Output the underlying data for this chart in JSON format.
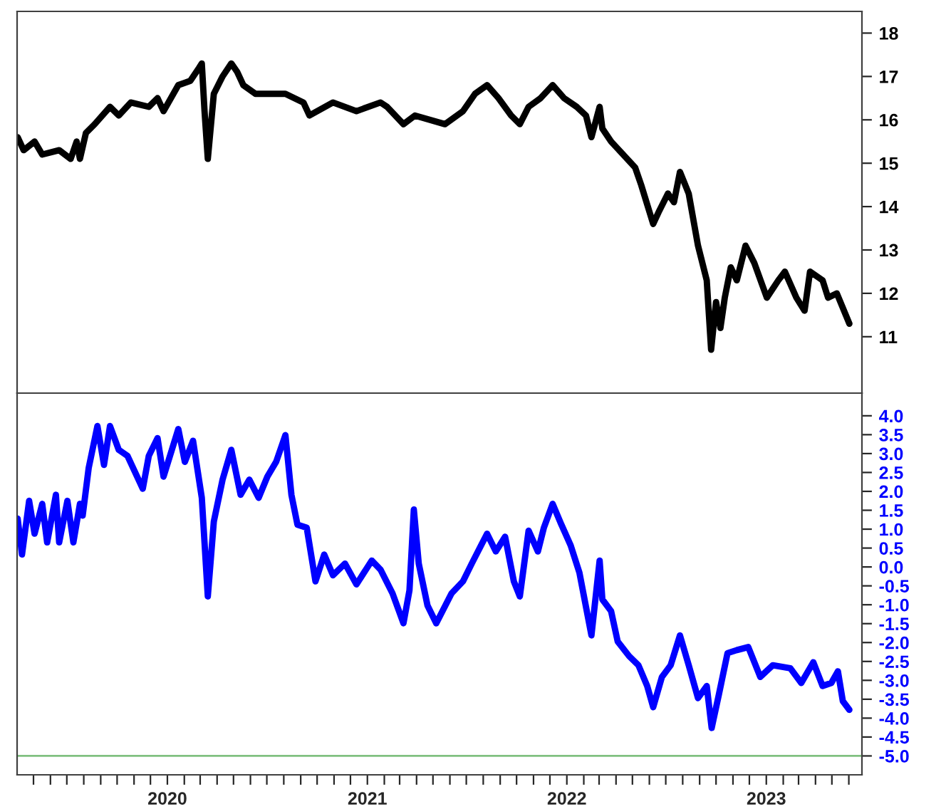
{
  "chart_data": [
    {
      "type": "line",
      "tick_labels": "y",
      "grid": false,
      "line_style": "solid",
      "marker": "none",
      "xlim": [
        "2019-04-01",
        "2023-06-25"
      ],
      "ylim": [
        9.7,
        18.5
      ],
      "yticks": [
        11,
        12,
        13,
        14,
        15,
        16,
        17,
        18
      ],
      "series": [
        {
          "color": "#000000",
          "x": [
            "2019-04-02",
            "2019-04-13",
            "2019-05-03",
            "2019-05-17",
            "2019-06-17",
            "2019-07-08",
            "2019-07-19",
            "2019-07-25",
            "2019-08-05",
            "2019-08-21",
            "2019-09-18",
            "2019-10-04",
            "2019-10-26",
            "2019-11-28",
            "2019-12-14",
            "2019-12-25",
            "2020-01-21",
            "2020-02-12",
            "2020-02-28",
            "2020-03-04",
            "2020-03-09",
            "2020-03-15",
            "2020-03-26",
            "2020-04-11",
            "2020-04-27",
            "2020-05-08",
            "2020-05-19",
            "2020-06-10",
            "2020-07-12",
            "2020-08-04",
            "2020-09-06",
            "2020-09-17",
            "2020-10-30",
            "2020-12-12",
            "2021-01-25",
            "2021-02-06",
            "2021-03-08",
            "2021-03-29",
            "2021-05-23",
            "2021-06-25",
            "2021-07-17",
            "2021-08-08",
            "2021-08-29",
            "2021-09-21",
            "2021-10-07",
            "2021-10-23",
            "2021-11-14",
            "2021-12-06",
            "2021-12-27",
            "2022-01-19",
            "2022-02-05",
            "2022-02-15",
            "2022-03-02",
            "2022-03-07",
            "2022-03-23",
            "2022-04-14",
            "2022-05-06",
            "2022-05-17",
            "2022-06-08",
            "2022-06-19",
            "2022-07-05",
            "2022-07-16",
            "2022-07-27",
            "2022-08-12",
            "2022-08-29",
            "2022-09-14",
            "2022-09-22",
            "2022-10-01",
            "2022-10-09",
            "2022-10-17",
            "2022-10-28",
            "2022-11-08",
            "2022-11-24",
            "2022-12-10",
            "2023-01-02",
            "2023-01-23",
            "2023-02-04",
            "2023-02-25",
            "2023-03-12",
            "2023-03-22",
            "2023-04-14",
            "2023-04-24",
            "2023-05-10",
            "2023-06-02"
          ],
          "values": [
            15.6,
            15.3,
            15.5,
            15.2,
            15.3,
            15.1,
            15.5,
            15.1,
            15.7,
            15.9,
            16.3,
            16.1,
            16.4,
            16.3,
            16.5,
            16.2,
            16.8,
            16.9,
            17.2,
            17.3,
            16.2,
            15.1,
            16.6,
            17.0,
            17.3,
            17.1,
            16.8,
            16.6,
            16.6,
            16.6,
            16.4,
            16.1,
            16.4,
            16.2,
            16.4,
            16.3,
            15.9,
            16.1,
            15.9,
            16.2,
            16.6,
            16.8,
            16.5,
            16.1,
            15.9,
            16.3,
            16.5,
            16.8,
            16.5,
            16.3,
            16.1,
            15.6,
            16.3,
            15.8,
            15.5,
            15.2,
            14.9,
            14.5,
            13.6,
            13.9,
            14.3,
            14.1,
            14.8,
            14.3,
            13.1,
            12.3,
            10.7,
            11.8,
            11.2,
            11.9,
            12.6,
            12.3,
            13.1,
            12.7,
            11.9,
            12.3,
            12.5,
            11.9,
            11.6,
            12.5,
            12.3,
            11.9,
            12.0,
            11.3
          ]
        }
      ]
    },
    {
      "type": "line",
      "grid": false,
      "line_style": "solid",
      "marker": "none",
      "xlim": [
        "2019-04-01",
        "2023-06-25"
      ],
      "xticks": [
        {
          "value": "2019-05-01",
          "label": null
        },
        {
          "value": "2019-06-01",
          "label": null
        },
        {
          "value": "2019-07-01",
          "label": null
        },
        {
          "value": "2019-08-01",
          "label": null
        },
        {
          "value": "2019-09-01",
          "label": null
        },
        {
          "value": "2019-10-01",
          "label": null
        },
        {
          "value": "2019-11-01",
          "label": null
        },
        {
          "value": "2019-12-01",
          "label": null
        },
        {
          "value": "2020-01-01",
          "label": "2020"
        },
        {
          "value": "2020-02-01",
          "label": null
        },
        {
          "value": "2020-03-01",
          "label": null
        },
        {
          "value": "2020-04-01",
          "label": null
        },
        {
          "value": "2020-05-01",
          "label": null
        },
        {
          "value": "2020-06-01",
          "label": null
        },
        {
          "value": "2020-07-01",
          "label": null
        },
        {
          "value": "2020-08-01",
          "label": null
        },
        {
          "value": "2020-09-01",
          "label": null
        },
        {
          "value": "2020-10-01",
          "label": null
        },
        {
          "value": "2020-11-01",
          "label": null
        },
        {
          "value": "2020-12-01",
          "label": null
        },
        {
          "value": "2021-01-01",
          "label": "2021"
        },
        {
          "value": "2021-02-01",
          "label": null
        },
        {
          "value": "2021-03-01",
          "label": null
        },
        {
          "value": "2021-04-01",
          "label": null
        },
        {
          "value": "2021-05-01",
          "label": null
        },
        {
          "value": "2021-06-01",
          "label": null
        },
        {
          "value": "2021-07-01",
          "label": null
        },
        {
          "value": "2021-08-01",
          "label": null
        },
        {
          "value": "2021-09-01",
          "label": null
        },
        {
          "value": "2021-10-01",
          "label": null
        },
        {
          "value": "2021-11-01",
          "label": null
        },
        {
          "value": "2021-12-01",
          "label": null
        },
        {
          "value": "2022-01-01",
          "label": "2022"
        },
        {
          "value": "2022-02-01",
          "label": null
        },
        {
          "value": "2022-03-01",
          "label": null
        },
        {
          "value": "2022-04-01",
          "label": null
        },
        {
          "value": "2022-05-01",
          "label": null
        },
        {
          "value": "2022-06-01",
          "label": null
        },
        {
          "value": "2022-07-01",
          "label": null
        },
        {
          "value": "2022-08-01",
          "label": null
        },
        {
          "value": "2022-09-01",
          "label": null
        },
        {
          "value": "2022-10-01",
          "label": null
        },
        {
          "value": "2022-11-01",
          "label": null
        },
        {
          "value": "2022-12-01",
          "label": null
        },
        {
          "value": "2023-01-01",
          "label": "2023"
        },
        {
          "value": "2023-02-01",
          "label": null
        },
        {
          "value": "2023-03-01",
          "label": null
        },
        {
          "value": "2023-04-01",
          "label": null
        },
        {
          "value": "2023-05-01",
          "label": null
        },
        {
          "value": "2023-06-01",
          "label": null
        }
      ],
      "ylim": [
        -5.5,
        4.6
      ],
      "yticks": [
        {
          "value": 4,
          "label": "4.0"
        },
        {
          "value": 3.5,
          "label": "3.5"
        },
        {
          "value": 3,
          "label": "3.0"
        },
        {
          "value": 2.5,
          "label": "2.5"
        },
        {
          "value": 2,
          "label": "2.0"
        },
        {
          "value": 1.5,
          "label": "1.5"
        },
        {
          "value": 1,
          "label": "1.0"
        },
        {
          "value": 0.5,
          "label": "0.5"
        },
        {
          "value": 0,
          "label": "0.0"
        },
        {
          "value": -0.5,
          "label": "-0.5"
        },
        {
          "value": -1,
          "label": "-1.0"
        },
        {
          "value": -1.5,
          "label": "-1.5"
        },
        {
          "value": -2,
          "label": "-2.0"
        },
        {
          "value": -2.5,
          "label": "-2.5"
        },
        {
          "value": -3,
          "label": "-3.0"
        },
        {
          "value": -3.5,
          "label": "-3.5"
        },
        {
          "value": -4,
          "label": "-4.0"
        },
        {
          "value": -4.5,
          "label": "-4.5"
        },
        {
          "value": -5,
          "label": "-5.0"
        }
      ],
      "ref_lines": [
        {
          "axis": "y",
          "value": -5.0,
          "color": "#80c080",
          "line_style": "solid"
        }
      ],
      "series": [
        {
          "color": "#0000ff",
          "x": [
            "2019-04-02",
            "2019-04-10",
            "2019-04-23",
            "2019-05-03",
            "2019-05-17",
            "2019-05-26",
            "2019-06-11",
            "2019-06-17",
            "2019-07-02",
            "2019-07-13",
            "2019-07-25",
            "2019-07-30",
            "2019-08-10",
            "2019-08-26",
            "2019-09-07",
            "2019-09-18",
            "2019-10-04",
            "2019-10-20",
            "2019-11-17",
            "2019-11-28",
            "2019-12-14",
            "2019-12-25",
            "2020-01-21",
            "2020-02-02",
            "2020-02-17",
            "2020-03-04",
            "2020-03-15",
            "2020-03-26",
            "2020-04-11",
            "2020-04-27",
            "2020-05-14",
            "2020-05-30",
            "2020-06-16",
            "2020-07-02",
            "2020-07-18",
            "2020-08-04",
            "2020-08-15",
            "2020-08-26",
            "2020-09-12",
            "2020-09-28",
            "2020-10-14",
            "2020-10-30",
            "2020-11-21",
            "2020-12-12",
            "2021-01-09",
            "2021-01-25",
            "2021-02-16",
            "2021-03-08",
            "2021-03-19",
            "2021-03-27",
            "2021-04-05",
            "2021-04-21",
            "2021-05-07",
            "2021-06-04",
            "2021-06-25",
            "2021-07-11",
            "2021-08-08",
            "2021-08-24",
            "2021-09-10",
            "2021-09-26",
            "2021-10-07",
            "2021-10-23",
            "2021-11-09",
            "2021-11-20",
            "2021-12-06",
            "2021-12-22",
            "2022-01-08",
            "2022-01-24",
            "2022-02-15",
            "2022-03-02",
            "2022-03-07",
            "2022-03-23",
            "2022-04-04",
            "2022-04-25",
            "2022-05-12",
            "2022-05-28",
            "2022-06-08",
            "2022-06-24",
            "2022-07-10",
            "2022-07-27",
            "2022-08-12",
            "2022-08-29",
            "2022-09-14",
            "2022-09-23",
            "2022-10-06",
            "2022-10-22",
            "2022-11-08",
            "2022-11-29",
            "2022-12-21",
            "2023-01-13",
            "2023-02-14",
            "2023-03-06",
            "2023-03-28",
            "2023-04-14",
            "2023-04-30",
            "2023-05-12",
            "2023-05-21",
            "2023-06-02"
          ],
          "values": [
            1.28,
            0.33,
            1.75,
            0.88,
            1.67,
            0.65,
            1.91,
            0.65,
            1.75,
            0.65,
            1.67,
            1.36,
            2.62,
            3.73,
            2.7,
            3.73,
            3.1,
            2.94,
            2.07,
            2.94,
            3.41,
            2.39,
            3.65,
            2.78,
            3.34,
            1.83,
            -0.78,
            1.2,
            2.31,
            3.1,
            1.91,
            2.31,
            1.83,
            2.39,
            2.78,
            3.49,
            1.91,
            1.12,
            1.04,
            -0.38,
            0.33,
            -0.22,
            0.09,
            -0.46,
            0.17,
            -0.07,
            -0.7,
            -1.49,
            -0.62,
            1.52,
            0.09,
            -1.02,
            -1.49,
            -0.7,
            -0.38,
            0.09,
            0.88,
            0.41,
            0.8,
            -0.38,
            -0.78,
            0.96,
            0.41,
            1.04,
            1.67,
            1.12,
            0.57,
            -0.15,
            -1.81,
            0.17,
            -0.86,
            -1.17,
            -1.97,
            -2.36,
            -2.6,
            -3.15,
            -3.71,
            -2.91,
            -2.6,
            -1.81,
            -2.6,
            -3.47,
            -3.15,
            -4.26,
            -3.39,
            -2.28,
            -2.2,
            -2.12,
            -2.91,
            -2.6,
            -2.68,
            -3.07,
            -2.52,
            -3.15,
            -3.07,
            -2.76,
            -3.55,
            -3.78
          ]
        }
      ]
    }
  ]
}
